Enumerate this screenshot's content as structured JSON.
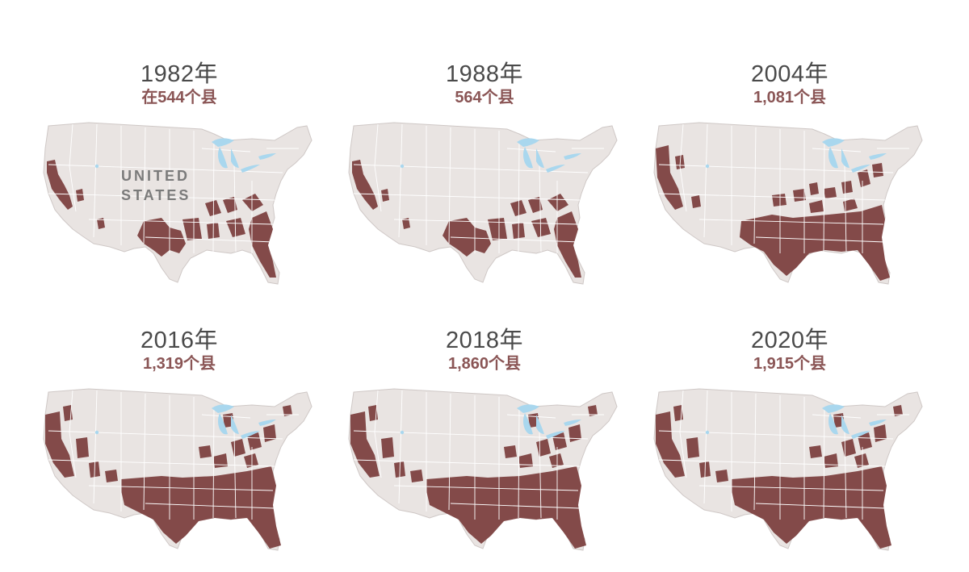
{
  "colors": {
    "land": "#e9e4e2",
    "border": "#ffffff",
    "lakes": "#a9d7ee",
    "affected": "#834a49",
    "title": "#4a4a4a",
    "subtitle": "#8a5555"
  },
  "map_label": {
    "line1": "UNITED",
    "line2": "STATES"
  },
  "panels": [
    {
      "year": "1982年",
      "count": "在544个县",
      "coverage": "low"
    },
    {
      "year": "1988年",
      "count": "564个县",
      "coverage": "low"
    },
    {
      "year": "2004年",
      "count": "1,081个县",
      "coverage": "medium"
    },
    {
      "year": "2016年",
      "count": "1,319个县",
      "coverage": "high"
    },
    {
      "year": "2018年",
      "count": "1,860个县",
      "coverage": "high"
    },
    {
      "year": "2020年",
      "count": "1,915个县",
      "coverage": "high"
    }
  ]
}
